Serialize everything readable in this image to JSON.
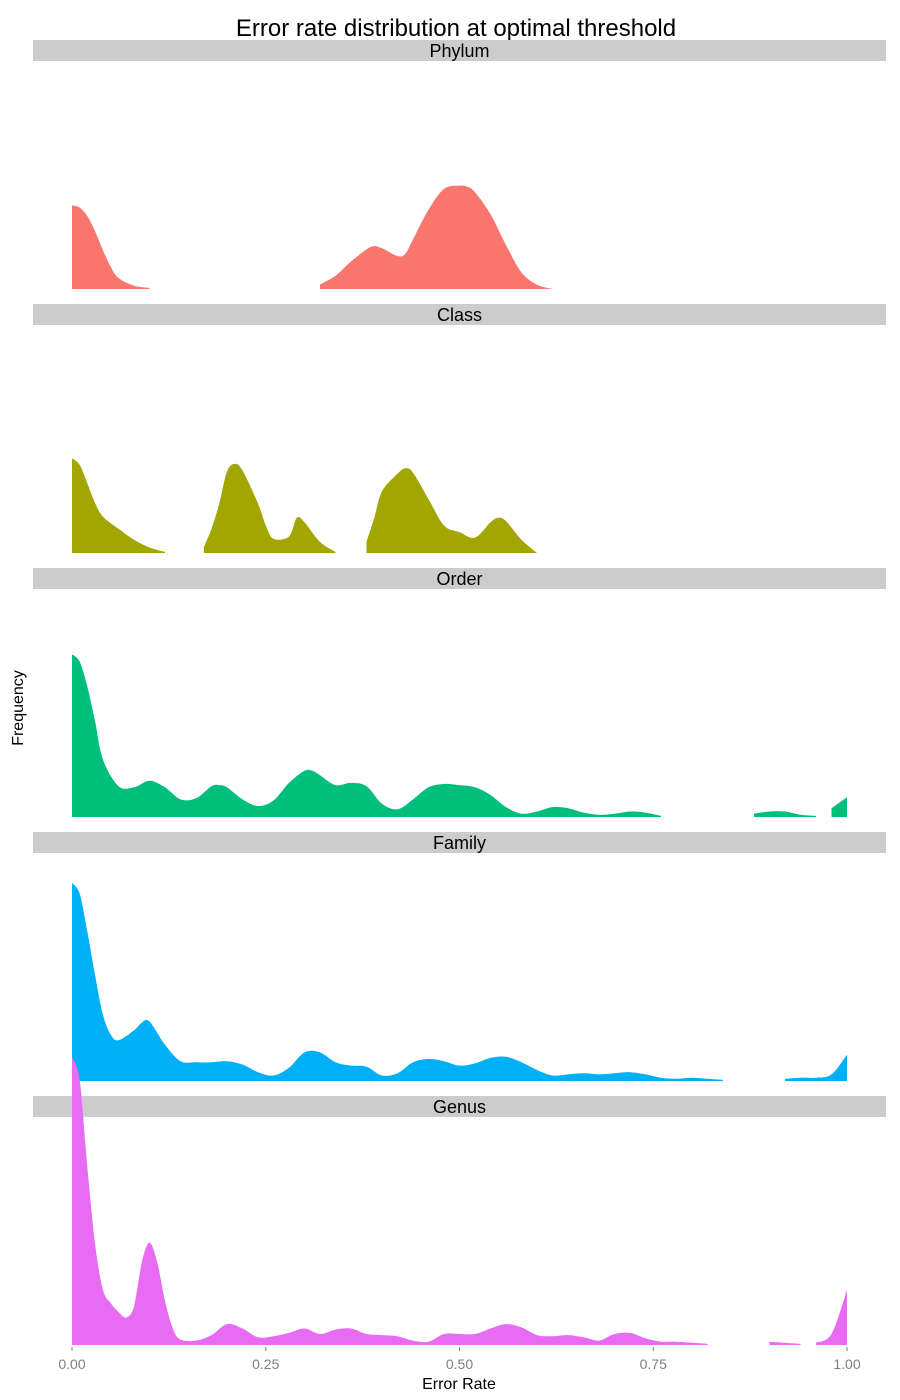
{
  "chart_data": {
    "type": "area",
    "title": "Error rate distribution at optimal threshold",
    "xlabel": "Error Rate",
    "ylabel": "Frequency",
    "xlim": [
      0,
      1
    ],
    "x_ticks": [
      "0.00",
      "0.25",
      "0.50",
      "0.75",
      "1.00"
    ],
    "x_tick_values": [
      0,
      0.25,
      0.5,
      0.75,
      1.0
    ],
    "grid": false,
    "legend": "none",
    "strip_color": "#cccccc",
    "panels": [
      {
        "name": "Phylum",
        "color": "#F8766D",
        "x": [
          0.0,
          0.01,
          0.02,
          0.03,
          0.04,
          0.05,
          0.06,
          0.08,
          0.1,
          0.12,
          0.14,
          0.3,
          0.32,
          0.34,
          0.36,
          0.38,
          0.39,
          0.4,
          0.42,
          0.43,
          0.44,
          0.46,
          0.48,
          0.5,
          0.51,
          0.52,
          0.54,
          0.56,
          0.58,
          0.6,
          0.62
        ],
        "y": [
          0.76,
          0.74,
          0.66,
          0.52,
          0.35,
          0.2,
          0.1,
          0.03,
          0.01,
          0.0,
          0.0,
          0.0,
          0.04,
          0.12,
          0.25,
          0.36,
          0.39,
          0.37,
          0.3,
          0.32,
          0.45,
          0.72,
          0.91,
          0.94,
          0.93,
          0.88,
          0.68,
          0.4,
          0.15,
          0.04,
          0.0
        ],
        "visible_threshold": 0.015
      },
      {
        "name": "Class",
        "color": "#A3A500",
        "x": [
          0.0,
          0.01,
          0.02,
          0.03,
          0.04,
          0.06,
          0.08,
          0.1,
          0.12,
          0.14,
          0.16,
          0.17,
          0.18,
          0.19,
          0.2,
          0.21,
          0.22,
          0.24,
          0.25,
          0.26,
          0.28,
          0.29,
          0.3,
          0.32,
          0.34,
          0.36,
          0.38,
          0.39,
          0.4,
          0.42,
          0.43,
          0.44,
          0.46,
          0.48,
          0.5,
          0.52,
          0.54,
          0.55,
          0.56,
          0.58,
          0.6
        ],
        "y": [
          0.86,
          0.8,
          0.63,
          0.45,
          0.33,
          0.22,
          0.12,
          0.05,
          0.01,
          0.0,
          0.0,
          0.05,
          0.22,
          0.45,
          0.74,
          0.81,
          0.75,
          0.45,
          0.25,
          0.13,
          0.15,
          0.32,
          0.28,
          0.1,
          0.01,
          0.01,
          0.1,
          0.32,
          0.56,
          0.72,
          0.77,
          0.73,
          0.49,
          0.25,
          0.19,
          0.14,
          0.28,
          0.32,
          0.29,
          0.12,
          0.0
        ],
        "visible_threshold": 0.015
      },
      {
        "name": "Order",
        "color": "#00BF7D",
        "x": [
          0.0,
          0.01,
          0.02,
          0.03,
          0.04,
          0.06,
          0.08,
          0.1,
          0.12,
          0.14,
          0.16,
          0.18,
          0.19,
          0.2,
          0.22,
          0.24,
          0.26,
          0.28,
          0.3,
          0.31,
          0.32,
          0.34,
          0.36,
          0.38,
          0.4,
          0.42,
          0.44,
          0.46,
          0.48,
          0.5,
          0.52,
          0.54,
          0.56,
          0.58,
          0.6,
          0.62,
          0.64,
          0.66,
          0.68,
          0.7,
          0.72,
          0.74,
          0.76,
          0.78,
          0.8,
          0.82,
          0.84,
          0.86,
          0.88,
          0.9,
          0.92,
          0.94,
          0.96,
          0.98,
          1.0
        ],
        "y": [
          1.48,
          1.41,
          1.18,
          0.86,
          0.52,
          0.28,
          0.27,
          0.33,
          0.27,
          0.16,
          0.17,
          0.28,
          0.29,
          0.27,
          0.16,
          0.1,
          0.15,
          0.31,
          0.42,
          0.42,
          0.38,
          0.29,
          0.31,
          0.28,
          0.12,
          0.07,
          0.16,
          0.27,
          0.3,
          0.29,
          0.27,
          0.2,
          0.09,
          0.03,
          0.05,
          0.09,
          0.08,
          0.04,
          0.02,
          0.03,
          0.05,
          0.04,
          0.01,
          0.0,
          0.0,
          0.0,
          0.0,
          0.01,
          0.03,
          0.05,
          0.05,
          0.02,
          0.01,
          0.08,
          0.18
        ],
        "visible_threshold": 0.015
      },
      {
        "name": "Family",
        "color": "#00B0F6",
        "x": [
          0.0,
          0.01,
          0.02,
          0.03,
          0.04,
          0.05,
          0.06,
          0.08,
          0.09,
          0.1,
          0.12,
          0.14,
          0.16,
          0.18,
          0.2,
          0.22,
          0.24,
          0.26,
          0.28,
          0.3,
          0.32,
          0.34,
          0.36,
          0.38,
          0.4,
          0.42,
          0.44,
          0.46,
          0.48,
          0.5,
          0.52,
          0.54,
          0.56,
          0.58,
          0.6,
          0.62,
          0.64,
          0.66,
          0.68,
          0.7,
          0.72,
          0.74,
          0.76,
          0.78,
          0.8,
          0.82,
          0.84,
          0.86,
          0.88,
          0.9,
          0.92,
          0.94,
          0.96,
          0.98,
          1.0
        ],
        "y": [
          1.8,
          1.7,
          1.35,
          0.95,
          0.6,
          0.42,
          0.37,
          0.46,
          0.53,
          0.54,
          0.33,
          0.18,
          0.17,
          0.17,
          0.18,
          0.15,
          0.08,
          0.05,
          0.12,
          0.26,
          0.26,
          0.17,
          0.14,
          0.13,
          0.05,
          0.07,
          0.17,
          0.2,
          0.18,
          0.14,
          0.16,
          0.21,
          0.22,
          0.17,
          0.1,
          0.05,
          0.06,
          0.07,
          0.06,
          0.07,
          0.08,
          0.06,
          0.03,
          0.02,
          0.03,
          0.02,
          0.01,
          0.0,
          0.0,
          0.01,
          0.02,
          0.03,
          0.03,
          0.06,
          0.24
        ],
        "visible_threshold": 0.015
      },
      {
        "name": "Genus",
        "color": "#E76BF3",
        "x": [
          0.0,
          0.01,
          0.02,
          0.03,
          0.04,
          0.05,
          0.06,
          0.07,
          0.08,
          0.09,
          0.1,
          0.11,
          0.12,
          0.13,
          0.14,
          0.16,
          0.18,
          0.2,
          0.22,
          0.24,
          0.26,
          0.28,
          0.3,
          0.32,
          0.34,
          0.36,
          0.38,
          0.4,
          0.42,
          0.44,
          0.46,
          0.48,
          0.5,
          0.52,
          0.54,
          0.56,
          0.58,
          0.6,
          0.62,
          0.64,
          0.66,
          0.68,
          0.7,
          0.72,
          0.74,
          0.76,
          0.78,
          0.8,
          0.82,
          0.84,
          0.86,
          0.88,
          0.9,
          0.92,
          0.94,
          0.96,
          0.98,
          1.0
        ],
        "y": [
          2.62,
          2.4,
          1.6,
          0.9,
          0.5,
          0.38,
          0.3,
          0.25,
          0.35,
          0.75,
          0.93,
          0.75,
          0.4,
          0.15,
          0.05,
          0.04,
          0.09,
          0.19,
          0.15,
          0.07,
          0.08,
          0.11,
          0.15,
          0.1,
          0.14,
          0.15,
          0.1,
          0.09,
          0.08,
          0.04,
          0.03,
          0.1,
          0.1,
          0.1,
          0.15,
          0.19,
          0.16,
          0.09,
          0.08,
          0.09,
          0.07,
          0.04,
          0.1,
          0.11,
          0.06,
          0.03,
          0.03,
          0.02,
          0.01,
          0.0,
          0.0,
          0.01,
          0.03,
          0.02,
          0.01,
          0.02,
          0.1,
          0.5
        ],
        "visible_threshold": 0.015
      }
    ]
  }
}
